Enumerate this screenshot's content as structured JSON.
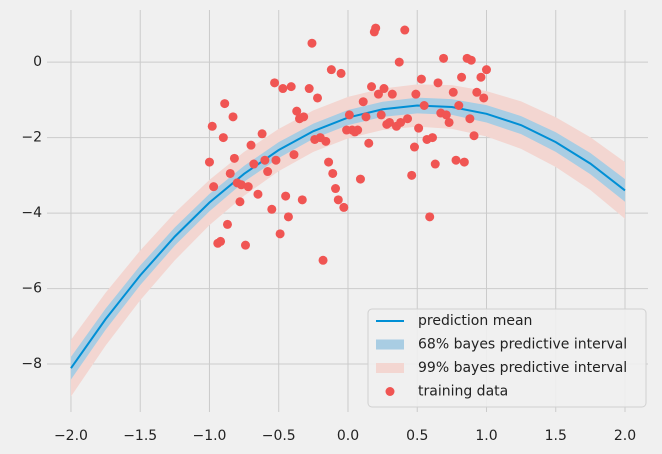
{
  "chart_data": {
    "type": "bayes-regression",
    "xlim": [
      -2.173,
      2.166
    ],
    "ylim": [
      -9.27,
      1.38
    ],
    "xticks": [
      {
        "value": -2,
        "label": "−2.0"
      },
      {
        "value": -1.5,
        "label": "−1.5"
      },
      {
        "value": -1,
        "label": "−1.0"
      },
      {
        "value": -0.5,
        "label": "−0.5"
      },
      {
        "value": 0,
        "label": "0.0"
      },
      {
        "value": 0.5,
        "label": "0.5"
      },
      {
        "value": 1,
        "label": "1.0"
      },
      {
        "value": 1.5,
        "label": "1.5"
      },
      {
        "value": 2,
        "label": "2.0"
      }
    ],
    "yticks": [
      {
        "value": -8,
        "label": "−8"
      },
      {
        "value": -6,
        "label": "−6"
      },
      {
        "value": -4,
        "label": "−4"
      },
      {
        "value": -2,
        "label": "−2"
      },
      0
    ],
    "grid": true,
    "legend": "lower-right",
    "x": [
      -2,
      -1.75,
      -1.5,
      -1.25,
      -1,
      -0.75,
      -0.5,
      -0.25,
      0,
      0.25,
      0.5,
      0.75,
      1,
      1.25,
      1.5,
      1.75,
      2
    ],
    "bands": [
      {
        "name": "99% bayes predictive interval",
        "color": "#f3d6d1",
        "lower": [
          -8.86,
          -7.51,
          -6.31,
          -5.25,
          -4.32,
          -3.54,
          -2.89,
          -2.38,
          -2.02,
          -1.8,
          -1.71,
          -1.77,
          -1.97,
          -2.3,
          -2.78,
          -3.39,
          -4.15
        ],
        "upper": [
          -7.36,
          -6.11,
          -4.99,
          -3.99,
          -3.12,
          -2.38,
          -1.77,
          -1.28,
          -0.92,
          -0.7,
          -0.59,
          -0.61,
          -0.77,
          -1.04,
          -1.46,
          -1.99,
          -2.65
        ]
      },
      {
        "name": "68% bayes predictive interval",
        "color": "#a9cde3",
        "lower": [
          -8.41,
          -7.09,
          -5.91,
          -4.86,
          -3.95,
          -3.17,
          -2.54,
          -2.03,
          -1.67,
          -1.45,
          -1.36,
          -1.4,
          -1.6,
          -1.91,
          -2.38,
          -2.97,
          -3.7
        ],
        "upper": [
          -7.81,
          -6.53,
          -5.39,
          -4.38,
          -3.49,
          -2.75,
          -2.12,
          -1.63,
          -1.27,
          -1.05,
          -0.94,
          -0.98,
          -1.14,
          -1.43,
          -1.86,
          -2.41,
          -3.1
        ]
      }
    ],
    "line": {
      "name": "prediction mean",
      "color": "#008fd5",
      "values": [
        -8.11,
        -6.81,
        -5.65,
        -4.62,
        -3.72,
        -2.96,
        -2.33,
        -1.83,
        -1.47,
        -1.25,
        -1.15,
        -1.19,
        -1.37,
        -1.67,
        -2.12,
        -2.69,
        -3.4
      ]
    },
    "scatter": {
      "name": "training data",
      "color": "#f05553",
      "x": [
        -1.0,
        -0.98,
        -0.97,
        -0.94,
        -0.92,
        -0.9,
        -0.89,
        -0.87,
        -0.85,
        -0.83,
        -0.82,
        -0.8,
        -0.78,
        -0.77,
        -0.74,
        -0.72,
        -0.7,
        -0.68,
        -0.65,
        -0.62,
        -0.6,
        -0.58,
        -0.55,
        -0.53,
        -0.52,
        -0.49,
        -0.47,
        -0.45,
        -0.43,
        -0.41,
        -0.39,
        -0.37,
        -0.35,
        -0.33,
        -0.32,
        -0.28,
        -0.26,
        -0.24,
        -0.22,
        -0.2,
        -0.18,
        -0.16,
        -0.14,
        -0.12,
        -0.11,
        -0.09,
        -0.07,
        -0.05,
        -0.03,
        -0.01,
        0.01,
        0.03,
        0.05,
        0.07,
        0.09,
        0.11,
        0.13,
        0.15,
        0.17,
        0.19,
        0.2,
        0.22,
        0.24,
        0.26,
        0.28,
        0.3,
        0.32,
        0.35,
        0.37,
        0.38,
        0.41,
        0.43,
        0.46,
        0.48,
        0.49,
        0.51,
        0.53,
        0.55,
        0.57,
        0.59,
        0.61,
        0.63,
        0.65,
        0.67,
        0.69,
        0.71,
        0.73,
        0.76,
        0.78,
        0.8,
        0.82,
        0.84,
        0.86,
        0.88,
        0.89,
        0.91,
        0.93,
        0.96,
        0.98,
        1.0
      ],
      "y": [
        -2.65,
        -1.7,
        -3.3,
        -4.8,
        -4.75,
        -2.0,
        -1.1,
        -4.3,
        -2.95,
        -1.45,
        -2.55,
        -3.2,
        -3.7,
        -3.25,
        -4.85,
        -3.3,
        -2.2,
        -2.7,
        -3.5,
        -1.9,
        -2.6,
        -2.9,
        -3.9,
        -0.55,
        -2.6,
        -4.55,
        -0.7,
        -3.55,
        -4.1,
        -0.65,
        -2.45,
        -1.3,
        -1.5,
        -3.65,
        -1.45,
        -0.7,
        0.5,
        -2.05,
        -0.95,
        -2.0,
        -5.25,
        -2.1,
        -2.65,
        -0.2,
        -2.95,
        -3.35,
        -3.65,
        -0.3,
        -3.85,
        -1.8,
        -1.4,
        -1.8,
        -1.85,
        -1.8,
        -3.1,
        -1.05,
        -1.45,
        -2.15,
        -0.65,
        0.8,
        0.9,
        -0.85,
        -1.4,
        -0.7,
        -1.65,
        -1.6,
        -0.85,
        -1.7,
        0.0,
        -1.6,
        0.85,
        -1.5,
        -3.0,
        -2.25,
        -0.85,
        -1.75,
        -0.45,
        -1.15,
        -2.05,
        -4.1,
        -2.0,
        -2.7,
        -0.55,
        -1.35,
        0.1,
        -1.4,
        -1.6,
        -0.8,
        -2.6,
        -1.15,
        -0.4,
        -2.65,
        0.1,
        -1.5,
        0.05,
        -1.95,
        -0.8,
        -0.4,
        -0.95,
        -0.2
      ]
    }
  }
}
